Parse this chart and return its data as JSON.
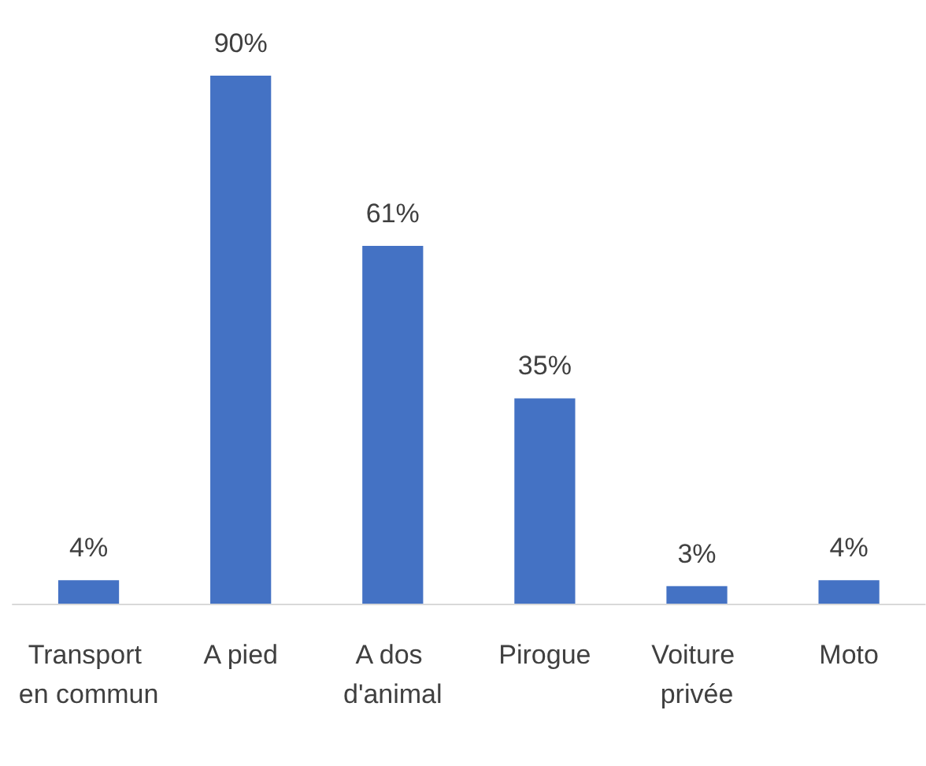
{
  "chart_data": {
    "type": "bar",
    "categories": [
      "Transport en commun",
      "A pied",
      "A dos d'animal",
      "Pirogue",
      "Voiture privée",
      "Moto"
    ],
    "values": [
      4,
      90,
      61,
      35,
      3,
      4
    ],
    "value_labels": [
      "4%",
      "90%",
      "61%",
      "35%",
      "3%",
      "4%"
    ],
    "color": "#4472c4"
  }
}
